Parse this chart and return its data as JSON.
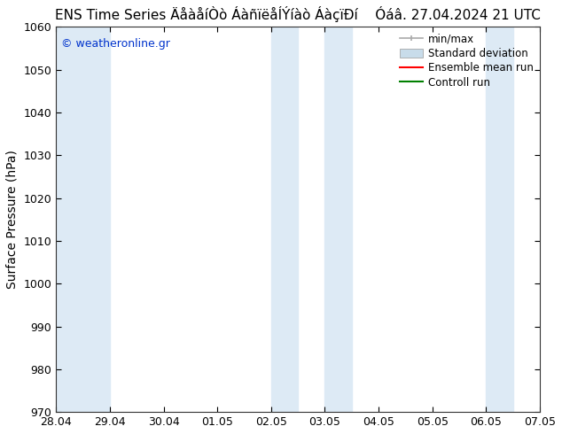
{
  "title": "ENS Time Series ÄåàåíÒò ÁàñïëåÍÝíàò ÁàçïÐí    Óáâ. 27.04.2024 21 UTC",
  "ylabel": "Surface Pressure (hPa)",
  "ylim": [
    970,
    1060
  ],
  "yticks": [
    970,
    980,
    990,
    1000,
    1010,
    1020,
    1030,
    1040,
    1050,
    1060
  ],
  "xlabels": [
    "28.04",
    "29.04",
    "30.04",
    "01.05",
    "02.05",
    "03.05",
    "04.05",
    "05.05",
    "06.05",
    "07.05"
  ],
  "x_values": [
    0,
    1,
    2,
    3,
    4,
    5,
    6,
    7,
    8,
    9
  ],
  "xlim": [
    0,
    9
  ],
  "shaded_bands": [
    {
      "x_start": 0.0,
      "x_end": 1.0,
      "color": "#ddeaf5"
    },
    {
      "x_start": 4.0,
      "x_end": 4.5,
      "color": "#ddeaf5"
    },
    {
      "x_start": 5.0,
      "x_end": 5.5,
      "color": "#ddeaf5"
    },
    {
      "x_start": 8.0,
      "x_end": 8.5,
      "color": "#ddeaf5"
    },
    {
      "x_start": 9.0,
      "x_end": 9.0,
      "color": "#ddeaf5"
    }
  ],
  "watermark": "© weatheronline.gr",
  "watermark_color": "#0033cc",
  "background_color": "#ffffff",
  "legend_items": [
    {
      "label": "min/max",
      "color": "#aaaaaa",
      "type": "minmax"
    },
    {
      "label": "Standard deviation",
      "color": "#c8dcea",
      "type": "band"
    },
    {
      "label": "Ensemble mean run",
      "color": "#ff0000",
      "type": "line"
    },
    {
      "label": "Controll run",
      "color": "#008000",
      "type": "line"
    }
  ],
  "title_fontsize": 11,
  "axis_label_fontsize": 10,
  "tick_fontsize": 9,
  "legend_fontsize": 8.5
}
